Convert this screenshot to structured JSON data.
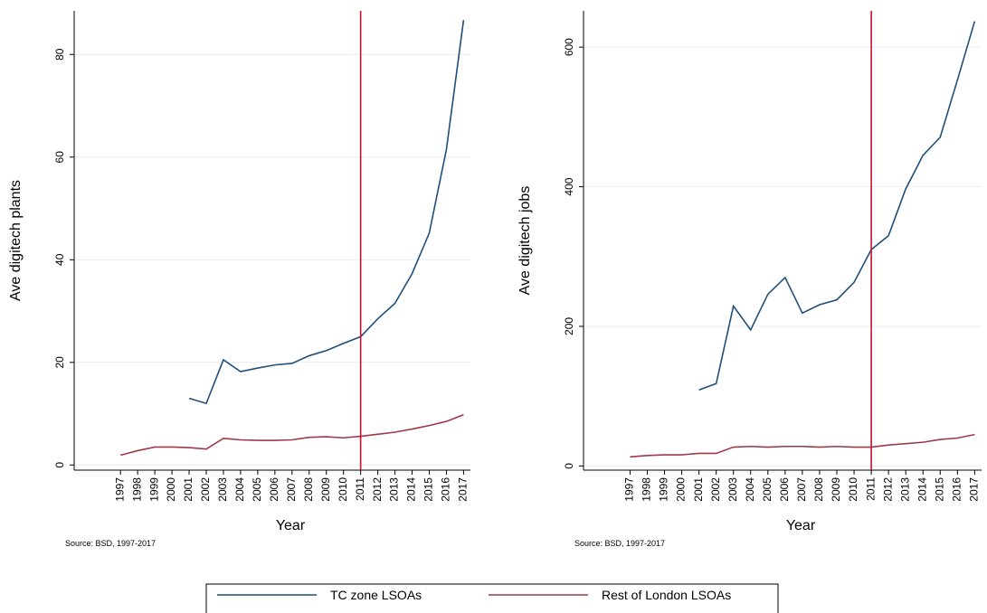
{
  "chart_data": [
    {
      "type": "line",
      "x_label": "Year",
      "y_label": "Ave digitech plants",
      "source": "Source: BSD, 1997-2017",
      "x": [
        1997,
        1998,
        1999,
        2000,
        2001,
        2002,
        2003,
        2004,
        2005,
        2006,
        2007,
        2008,
        2009,
        2010,
        2011,
        2012,
        2013,
        2014,
        2015,
        2016,
        2017
      ],
      "xlim": [
        1994.3,
        2017.4
      ],
      "xticks": [
        1997,
        1998,
        1999,
        2000,
        2001,
        2002,
        2003,
        2004,
        2005,
        2006,
        2007,
        2008,
        2009,
        2010,
        2011,
        2012,
        2013,
        2014,
        2015,
        2016,
        2017
      ],
      "ylim": [
        -1,
        88.5
      ],
      "yticks": [
        0,
        20,
        40,
        60,
        80
      ],
      "grid": true,
      "vline": 2011,
      "vline_color": "#c8102e",
      "series": [
        {
          "name": "TC zone LSOAs",
          "color": "#1f4e79",
          "values": [
            null,
            null,
            null,
            null,
            13,
            12,
            20.5,
            18.2,
            18.9,
            19.5,
            19.8,
            21.3,
            22.3,
            23.7,
            25,
            28.5,
            31.5,
            37.3,
            45.2,
            61.5,
            86.7
          ]
        },
        {
          "name": "Rest of London LSOAs",
          "color": "#9e3a4a",
          "values": [
            1.9,
            2.8,
            3.5,
            3.5,
            3.4,
            3.1,
            5.2,
            4.9,
            4.8,
            4.8,
            4.9,
            5.4,
            5.5,
            5.3,
            5.6,
            6.0,
            6.4,
            7.0,
            7.7,
            8.5,
            9.8
          ]
        }
      ]
    },
    {
      "type": "line",
      "x_label": "Year",
      "y_label": "Ave digitech jobs",
      "source": "Source: BSD, 1997-2017",
      "x": [
        1997,
        1998,
        1999,
        2000,
        2001,
        2002,
        2003,
        2004,
        2005,
        2006,
        2007,
        2008,
        2009,
        2010,
        2011,
        2012,
        2013,
        2014,
        2015,
        2016,
        2017
      ],
      "xlim": [
        1994.3,
        2017.4
      ],
      "xticks": [
        1997,
        1998,
        1999,
        2000,
        2001,
        2002,
        2003,
        2004,
        2005,
        2006,
        2007,
        2008,
        2009,
        2010,
        2011,
        2012,
        2013,
        2014,
        2015,
        2016,
        2017
      ],
      "ylim": [
        -6,
        652
      ],
      "yticks": [
        0,
        200,
        400,
        600
      ],
      "grid": true,
      "vline": 2011,
      "vline_color": "#c8102e",
      "series": [
        {
          "color": "#1f4e79",
          "values": [
            null,
            null,
            null,
            null,
            109,
            118,
            229,
            195,
            246,
            270,
            219,
            231,
            238,
            263,
            310,
            330,
            397,
            445,
            471,
            553,
            637
          ]
        },
        {
          "color": "#9e3a4a",
          "values": [
            13,
            15,
            16,
            16,
            18,
            18,
            27,
            28,
            27,
            28,
            28,
            27,
            28,
            27,
            27,
            30,
            32,
            34,
            38,
            40,
            45
          ]
        }
      ]
    }
  ]
}
